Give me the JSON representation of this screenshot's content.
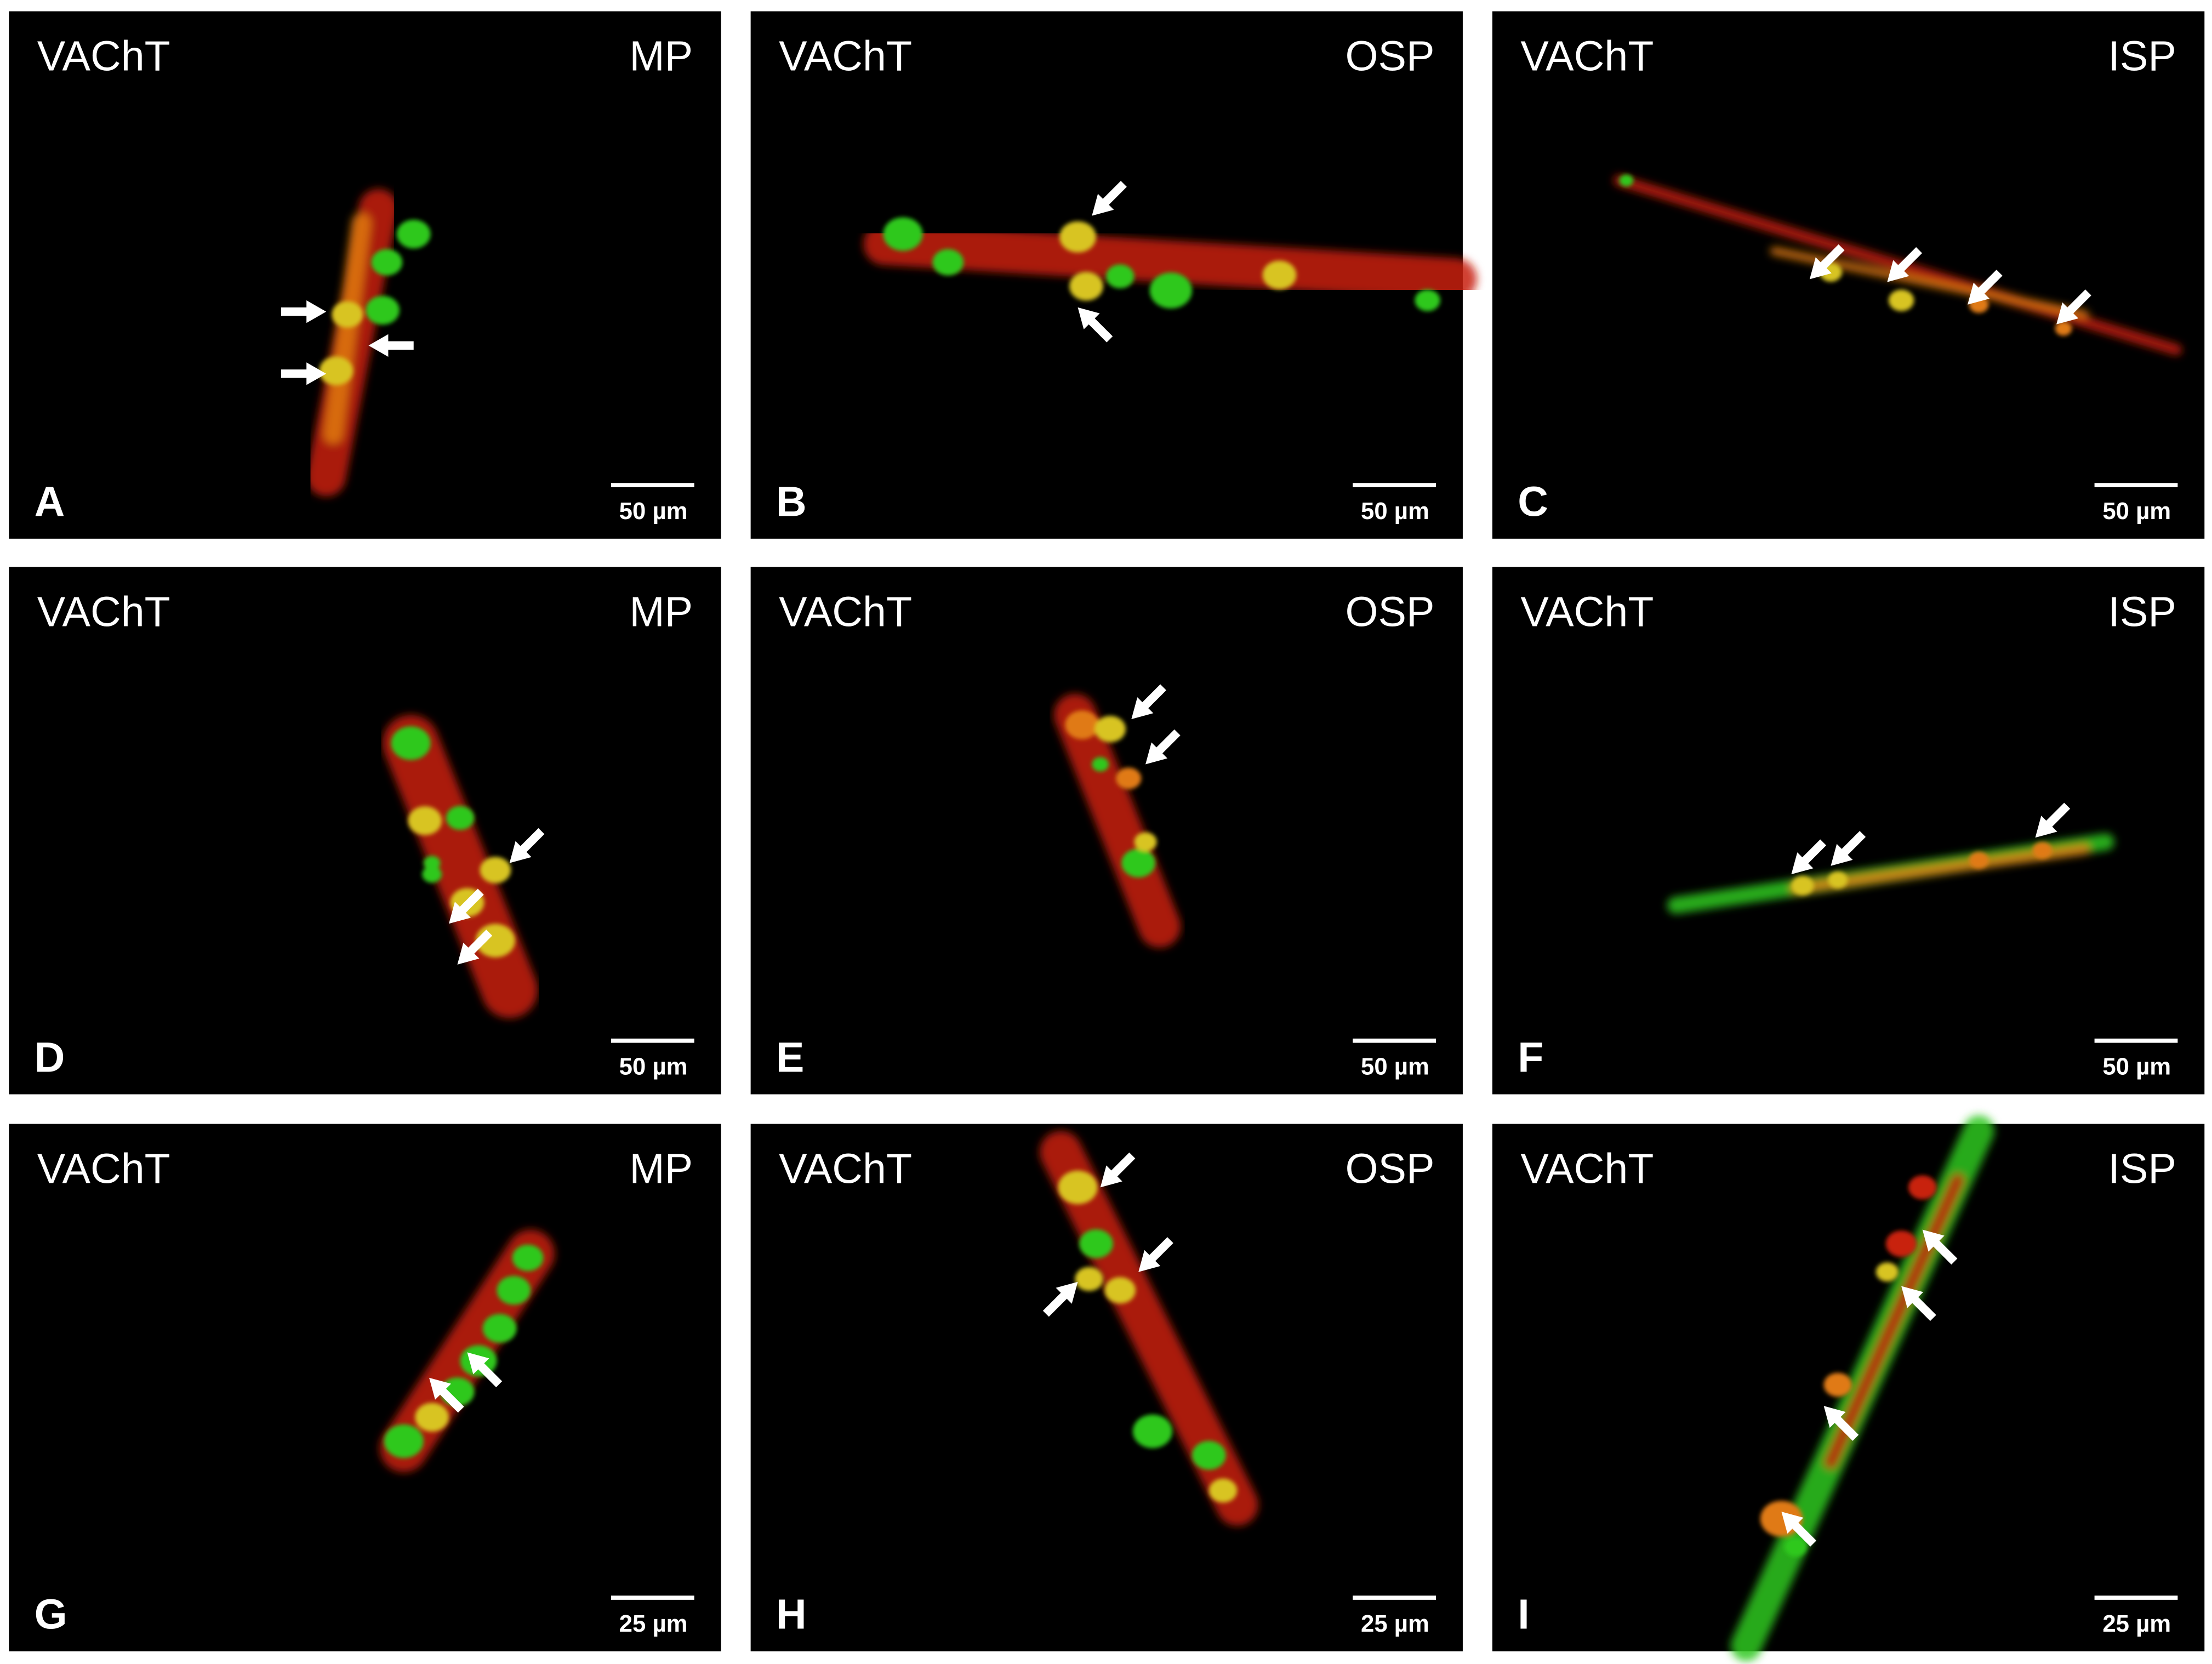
{
  "figure": {
    "panels": [
      {
        "label": "A",
        "marker": "VAChT",
        "region": "MP",
        "scale_bar": "50 µm"
      },
      {
        "label": "B",
        "marker": "VAChT",
        "region": "OSP",
        "scale_bar": "50 µm"
      },
      {
        "label": "C",
        "marker": "VAChT",
        "region": "ISP",
        "scale_bar": "50 µm"
      },
      {
        "label": "D",
        "marker": "VAChT",
        "region": "MP",
        "scale_bar": "50 µm"
      },
      {
        "label": "E",
        "marker": "VAChT",
        "region": "OSP",
        "scale_bar": "50 µm"
      },
      {
        "label": "F",
        "marker": "VAChT",
        "region": "ISP",
        "scale_bar": "50 µm"
      },
      {
        "label": "G",
        "marker": "VAChT",
        "region": "MP",
        "scale_bar": "25 µm"
      },
      {
        "label": "H",
        "marker": "VAChT",
        "region": "OSP",
        "scale_bar": "25 µm"
      },
      {
        "label": "I",
        "marker": "VAChT",
        "region": "ISP",
        "scale_bar": "25 µm"
      }
    ]
  }
}
